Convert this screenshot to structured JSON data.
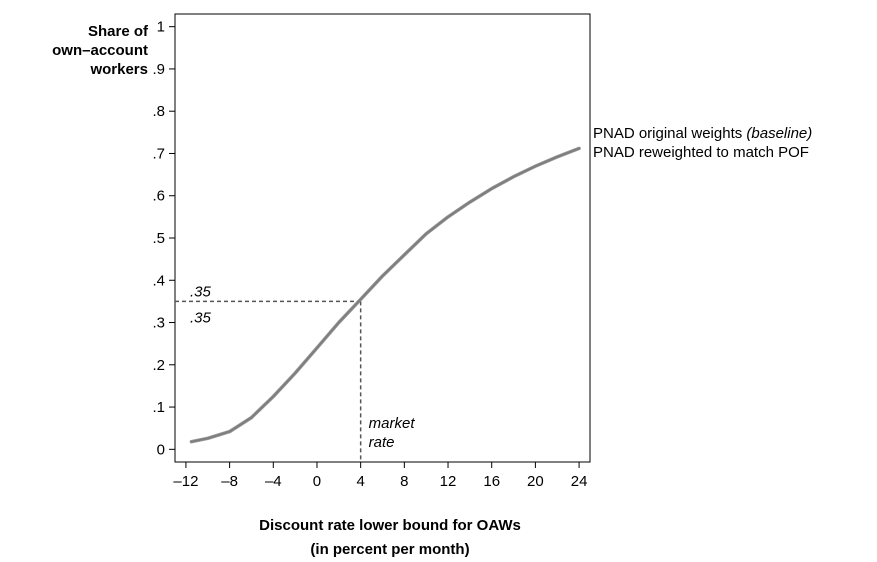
{
  "chart_data": {
    "type": "line",
    "ylabel_lines": [
      "Share of",
      "own–account",
      "workers"
    ],
    "xlabel_lines": [
      "Discount rate lower bound for OAWs",
      "(in percent per month)"
    ],
    "xlim": [
      -13,
      25
    ],
    "ylim": [
      -0.03,
      1.03
    ],
    "x_ticks": [
      -12,
      -8,
      -4,
      0,
      4,
      8,
      12,
      16,
      20,
      24
    ],
    "x_tick_labels": [
      "–12",
      "–8",
      "–4",
      "0",
      "4",
      "8",
      "12",
      "16",
      "20",
      "24"
    ],
    "y_ticks": [
      0,
      0.1,
      0.2,
      0.3,
      0.4,
      0.5,
      0.6,
      0.7,
      0.8,
      0.9,
      1
    ],
    "y_tick_labels": [
      "0",
      ".1",
      ".2",
      ".3",
      ".4",
      ".5",
      ".6",
      ".7",
      ".8",
      ".9",
      "1"
    ],
    "series": [
      {
        "name": "PNAD original weights",
        "name_suffix": "(baseline)",
        "color": "#000000",
        "x": [
          -11.5,
          -10,
          -8,
          -6,
          -4,
          -2,
          0,
          2,
          4,
          6,
          8,
          10,
          12,
          14,
          16,
          18,
          20,
          22,
          24
        ],
        "y": [
          0.018,
          0.026,
          0.042,
          0.075,
          0.125,
          0.18,
          0.24,
          0.3,
          0.355,
          0.41,
          0.46,
          0.51,
          0.55,
          0.585,
          0.617,
          0.645,
          0.67,
          0.692,
          0.712
        ]
      },
      {
        "name": "PNAD reweighted to match POF",
        "color": "#8c8c8c",
        "x": [
          -11.5,
          -10,
          -8,
          -6,
          -4,
          -2,
          0,
          2,
          4,
          6,
          8,
          10,
          12,
          14,
          16,
          18,
          20,
          22,
          24
        ],
        "y": [
          0.018,
          0.026,
          0.042,
          0.075,
          0.125,
          0.18,
          0.24,
          0.3,
          0.355,
          0.41,
          0.46,
          0.51,
          0.55,
          0.585,
          0.617,
          0.645,
          0.67,
          0.692,
          0.712
        ]
      }
    ],
    "annotations": {
      "value_top": ".35",
      "value_bottom": ".35",
      "level_y": 0.35,
      "market_x": 4,
      "market_label_line1": "market",
      "market_label_line2": "rate"
    },
    "grid": false
  }
}
